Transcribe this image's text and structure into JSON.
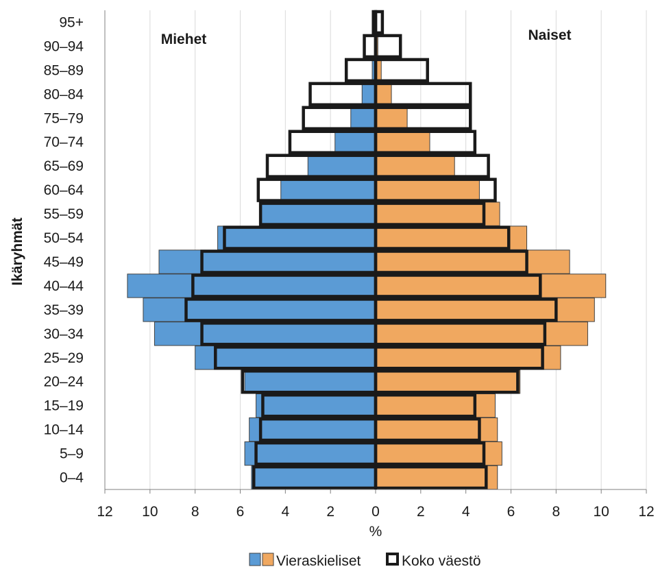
{
  "chart_data": {
    "type": "bar",
    "orientation": "horizontal",
    "subtype": "population-pyramid",
    "ylabel": "Ikäryhmät",
    "xlabel": "%",
    "left_label": "Miehet",
    "right_label": "Naiset",
    "xlim": [
      -12,
      12
    ],
    "x_ticks": [
      -12,
      -10,
      -8,
      -6,
      -4,
      -2,
      0,
      2,
      4,
      6,
      8,
      10,
      12
    ],
    "x_tick_labels": [
      "12",
      "10",
      "8",
      "6",
      "4",
      "2",
      "0",
      "2",
      "4",
      "6",
      "8",
      "10",
      "12"
    ],
    "grid": "vertical",
    "categories": [
      "0–4",
      "5–9",
      "10–14",
      "15–19",
      "20–24",
      "25–29",
      "30–34",
      "35–39",
      "40–44",
      "45–49",
      "50–54",
      "55–59",
      "60–64",
      "65–69",
      "70–74",
      "75–79",
      "80–84",
      "85–89",
      "90–94",
      "95+"
    ],
    "series": [
      {
        "name": "Vieraskieliset",
        "side": "Miehet",
        "color": "#5b9bd5",
        "values": [
          5.5,
          5.8,
          5.6,
          5.3,
          5.8,
          8.0,
          9.8,
          10.3,
          11.0,
          9.6,
          7.0,
          5.1,
          4.2,
          3.0,
          1.8,
          1.1,
          0.6,
          0.15,
          0.05,
          0.0
        ]
      },
      {
        "name": "Vieraskieliset",
        "side": "Naiset",
        "color": "#f0a860",
        "values": [
          5.4,
          5.6,
          5.4,
          5.3,
          6.4,
          8.2,
          9.4,
          9.7,
          10.2,
          8.6,
          6.7,
          5.5,
          4.6,
          3.5,
          2.4,
          1.4,
          0.7,
          0.25,
          0.1,
          0.02
        ]
      },
      {
        "name": "Koko väestö",
        "side": "Miehet",
        "color": "#1a1a1a",
        "values": [
          5.4,
          5.3,
          5.1,
          5.0,
          5.9,
          7.1,
          7.7,
          8.4,
          8.1,
          7.7,
          6.7,
          5.1,
          5.2,
          4.8,
          3.8,
          3.2,
          2.9,
          1.3,
          0.5,
          0.1
        ]
      },
      {
        "name": "Koko väestö",
        "side": "Naiset",
        "color": "#1a1a1a",
        "values": [
          4.9,
          4.8,
          4.6,
          4.4,
          6.3,
          7.4,
          7.5,
          8.0,
          7.3,
          6.7,
          5.9,
          4.8,
          5.3,
          5.0,
          4.4,
          4.2,
          4.2,
          2.3,
          1.1,
          0.3
        ]
      }
    ],
    "legend": {
      "placement": "bottom",
      "items": [
        {
          "label": "Vieraskieliset",
          "swatches": [
            "#5b9bd5",
            "#f0a860"
          ]
        },
        {
          "label": "Koko väestö",
          "swatches": [
            "outline"
          ]
        }
      ]
    }
  }
}
